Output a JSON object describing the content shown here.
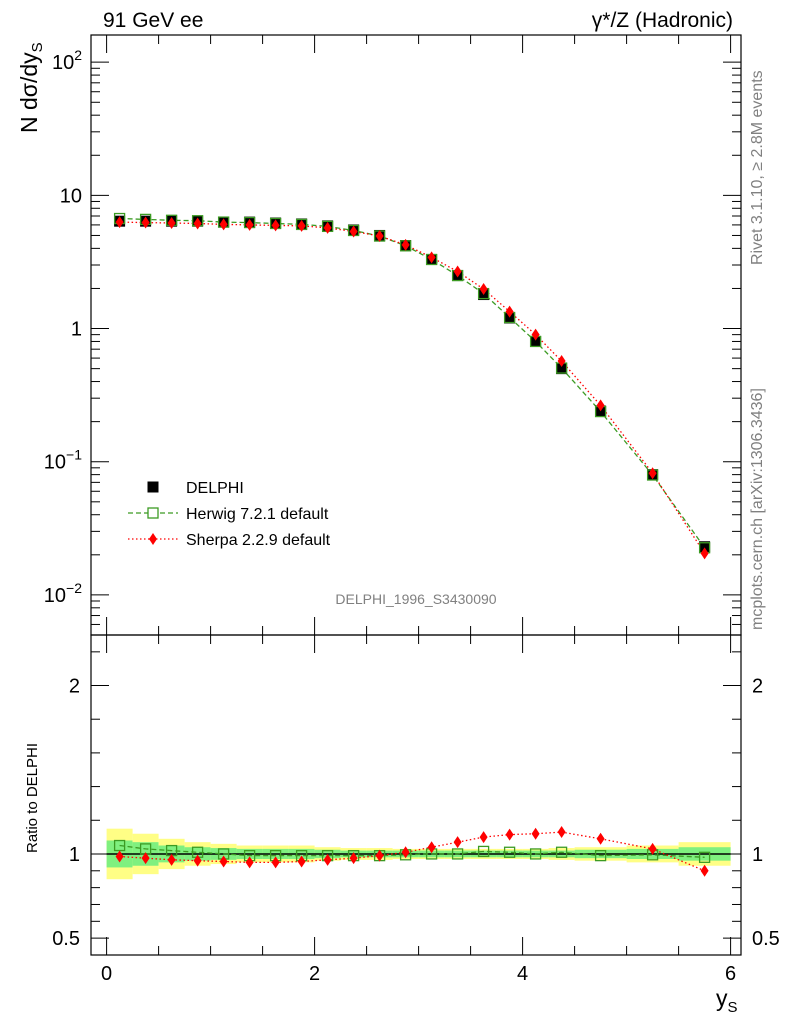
{
  "header": {
    "left": "91 GeV ee",
    "right": "γ*/Z (Hadronic)"
  },
  "side_labels": {
    "rivet": "Rivet 3.1.10, ≥ 2.8M events",
    "mcplots": "mcplots.cern.ch [arXiv:1306.3436]"
  },
  "watermark": "DELPHI_1996_S3430090",
  "chart_data": [
    {
      "type": "scatter",
      "panel": "main",
      "ylabel": "N dσ/dy",
      "ylabel_sub": "S",
      "yscale": "log",
      "ylim": [
        0.005,
        160
      ],
      "xlim": [
        -0.15,
        6.1
      ],
      "y_ticks": [
        {
          "value": 0.01,
          "base": "10",
          "exp": "−2"
        },
        {
          "value": 0.1,
          "base": "10",
          "exp": "−1"
        },
        {
          "value": 1,
          "base": "1",
          "exp": ""
        },
        {
          "value": 10,
          "base": "10",
          "exp": ""
        },
        {
          "value": 100,
          "base": "10",
          "exp": "2"
        }
      ],
      "legend_position": "bottom-left",
      "x": [
        0.125,
        0.375,
        0.625,
        0.875,
        1.125,
        1.375,
        1.625,
        1.875,
        2.125,
        2.375,
        2.625,
        2.875,
        3.125,
        3.375,
        3.625,
        3.875,
        4.125,
        4.375,
        4.75,
        5.25,
        5.75
      ],
      "series": [
        {
          "name": "DELPHI",
          "color": "#000000",
          "marker": "filled-square",
          "values": [
            6.4,
            6.4,
            6.4,
            6.4,
            6.3,
            6.3,
            6.2,
            6.1,
            5.9,
            5.5,
            5.0,
            4.2,
            3.3,
            2.5,
            1.8,
            1.2,
            0.8,
            0.5,
            0.24,
            0.08,
            0.023
          ]
        },
        {
          "name": "Herwig 7.2.1 default",
          "color": "#3c9b23",
          "marker": "open-square",
          "line": "dashed",
          "values": [
            6.7,
            6.6,
            6.5,
            6.45,
            6.3,
            6.25,
            6.15,
            6.05,
            5.85,
            5.45,
            4.95,
            4.18,
            3.3,
            2.5,
            1.83,
            1.21,
            0.8,
            0.505,
            0.238,
            0.0795,
            0.0226
          ]
        },
        {
          "name": "Sherpa 2.2.9 default",
          "color": "#ff0000",
          "marker": "filled-diamond",
          "line": "dotted",
          "values": [
            6.3,
            6.25,
            6.2,
            6.15,
            6.05,
            6.0,
            5.95,
            5.9,
            5.7,
            5.35,
            4.95,
            4.25,
            3.42,
            2.68,
            1.98,
            1.34,
            0.9,
            0.57,
            0.265,
            0.082,
            0.0205
          ]
        }
      ]
    },
    {
      "type": "scatter",
      "panel": "ratio",
      "ylabel": "Ratio to DELPHI",
      "xlabel": "y",
      "xlabel_sub": "S",
      "ylim": [
        0.4,
        2.3
      ],
      "xlim": [
        -0.15,
        6.1
      ],
      "y_ticks": [
        0.5,
        1,
        2
      ],
      "x_ticks": [
        0,
        2,
        4,
        6
      ],
      "x": [
        0.125,
        0.375,
        0.625,
        0.875,
        1.125,
        1.375,
        1.625,
        1.875,
        2.125,
        2.375,
        2.625,
        2.875,
        3.125,
        3.375,
        3.625,
        3.875,
        4.125,
        4.375,
        4.75,
        5.25,
        5.75
      ],
      "x_edges": [
        0,
        0.25,
        0.5,
        0.75,
        1.0,
        1.25,
        1.5,
        1.75,
        2.0,
        2.25,
        2.5,
        2.75,
        3.0,
        3.25,
        3.5,
        3.75,
        4.0,
        4.25,
        4.5,
        5.0,
        5.5,
        6.0
      ],
      "band_stat": [
        0.08,
        0.07,
        0.05,
        0.04,
        0.035,
        0.03,
        0.03,
        0.03,
        0.025,
        0.02,
        0.02,
        0.02,
        0.02,
        0.02,
        0.02,
        0.02,
        0.02,
        0.02,
        0.025,
        0.03,
        0.04
      ],
      "band_total": [
        0.15,
        0.12,
        0.09,
        0.07,
        0.06,
        0.05,
        0.05,
        0.05,
        0.04,
        0.035,
        0.035,
        0.03,
        0.03,
        0.03,
        0.03,
        0.03,
        0.03,
        0.035,
        0.04,
        0.05,
        0.07
      ],
      "band_stat_color": "#7ff07f",
      "band_total_color": "#fffe85",
      "series": [
        {
          "name": "Herwig 7.2.1 default",
          "color": "#3c9b23",
          "values": [
            1.05,
            1.03,
            1.02,
            1.01,
            1.0,
            0.99,
            0.99,
            0.99,
            0.99,
            0.99,
            0.99,
            0.995,
            1.0,
            1.0,
            1.015,
            1.01,
            1.0,
            1.01,
            0.99,
            0.995,
            0.98
          ]
        },
        {
          "name": "Sherpa 2.2.9 default",
          "color": "#ff0000",
          "values": [
            0.985,
            0.975,
            0.965,
            0.96,
            0.955,
            0.95,
            0.95,
            0.955,
            0.965,
            0.975,
            0.99,
            1.01,
            1.04,
            1.07,
            1.1,
            1.115,
            1.12,
            1.13,
            1.09,
            1.03,
            0.9
          ]
        }
      ]
    }
  ]
}
